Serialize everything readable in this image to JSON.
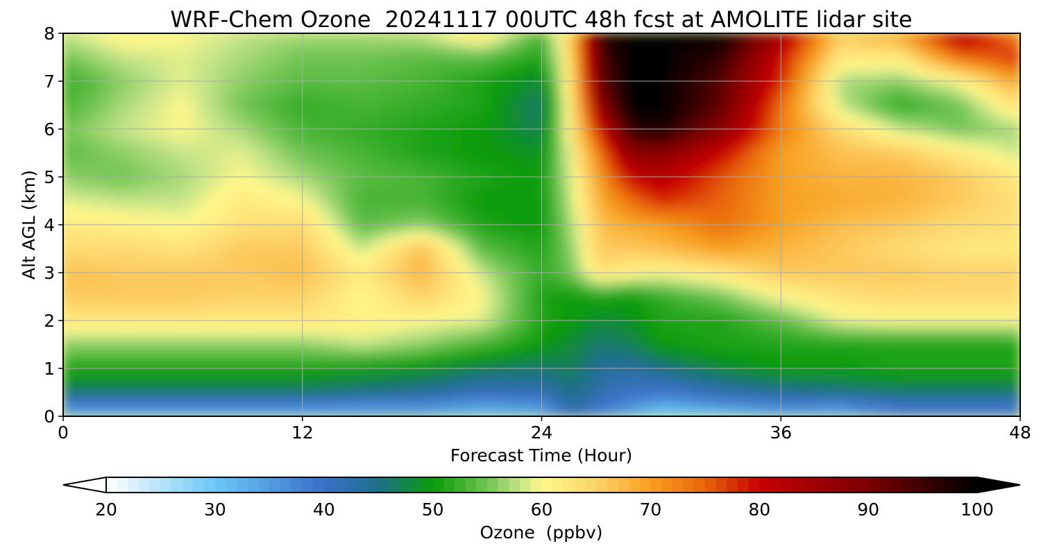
{
  "chart_data": {
    "type": "heatmap",
    "title": "WRF-Chem Ozone  20241117 00UTC 48h fcst at AMOLITE lidar site",
    "xlabel": "Forecast Time (Hour)",
    "ylabel": "Alt AGL (km)",
    "xlim": [
      0,
      48
    ],
    "ylim": [
      0,
      8
    ],
    "xticks": [
      0,
      12,
      24,
      36,
      48
    ],
    "yticks": [
      0,
      1,
      2,
      3,
      4,
      5,
      6,
      7,
      8
    ],
    "grid": true,
    "colorbar": {
      "label": "Ozone  (ppbv)",
      "range": [
        20,
        100
      ],
      "ticks": [
        20,
        30,
        40,
        50,
        60,
        70,
        80,
        90,
        100
      ],
      "extend": "both",
      "stops": [
        {
          "value": 20,
          "color": "#ffffff"
        },
        {
          "value": 30,
          "color": "#6cc8f5"
        },
        {
          "value": 40,
          "color": "#3b6fc7"
        },
        {
          "value": 45,
          "color": "#1f6f8a"
        },
        {
          "value": 50,
          "color": "#0a9b0a"
        },
        {
          "value": 55,
          "color": "#70c452"
        },
        {
          "value": 58,
          "color": "#c5e48a"
        },
        {
          "value": 60,
          "color": "#fff88a"
        },
        {
          "value": 65,
          "color": "#fdd36a"
        },
        {
          "value": 70,
          "color": "#f7a020"
        },
        {
          "value": 75,
          "color": "#e8650a"
        },
        {
          "value": 80,
          "color": "#c80000"
        },
        {
          "value": 90,
          "color": "#7a0000"
        },
        {
          "value": 100,
          "color": "#000000"
        }
      ]
    },
    "x": [
      0,
      3,
      6,
      9,
      12,
      15,
      18,
      21,
      24,
      25.5,
      27,
      28.5,
      30,
      33,
      36,
      39,
      42,
      45,
      48
    ],
    "y": [
      0,
      0.25,
      0.5,
      1,
      1.5,
      2,
      2.5,
      3,
      3.5,
      4,
      4.5,
      5,
      5.5,
      6,
      6.5,
      7,
      7.5,
      8
    ],
    "z": [
      [
        33,
        33,
        33,
        33,
        33,
        33,
        33,
        31,
        33,
        40,
        36,
        32,
        28,
        30,
        33,
        33,
        38,
        38,
        38
      ],
      [
        38,
        38,
        38,
        38,
        38,
        37,
        37,
        35,
        36,
        44,
        40,
        37,
        34,
        36,
        38,
        37,
        40,
        40,
        40
      ],
      [
        46,
        46,
        46,
        46,
        46,
        45,
        44,
        41,
        42,
        45,
        42,
        40,
        39,
        42,
        44,
        45,
        46,
        46,
        46
      ],
      [
        51,
        51,
        51,
        51,
        51,
        50,
        49,
        47,
        46,
        47,
        44,
        43,
        45,
        48,
        50,
        50,
        51,
        51,
        51
      ],
      [
        56,
        56,
        56,
        56,
        56,
        58,
        56,
        53,
        50,
        48,
        46,
        47,
        50,
        51,
        51,
        51,
        51,
        51,
        51
      ],
      [
        62,
        62,
        62,
        62,
        62,
        61,
        60,
        59,
        51,
        50,
        48,
        49,
        51,
        51,
        54,
        59,
        60,
        60,
        60
      ],
      [
        66,
        66,
        66,
        65,
        65,
        60,
        65,
        60,
        51,
        50,
        51,
        50,
        52,
        55,
        60,
        63,
        64,
        64,
        64
      ],
      [
        67,
        66,
        66,
        66,
        67,
        62,
        68,
        58,
        52,
        55,
        63,
        61,
        60,
        62,
        66,
        66,
        66,
        65,
        65
      ],
      [
        64,
        64,
        63,
        66,
        66,
        58,
        67,
        54,
        51,
        56,
        66,
        66,
        67,
        70,
        68,
        66,
        64,
        62,
        62
      ],
      [
        62,
        61,
        60,
        63,
        64,
        54,
        56,
        51,
        50,
        57,
        67,
        69,
        70,
        74,
        70,
        67,
        66,
        64,
        63
      ],
      [
        59,
        58,
        58,
        62,
        60,
        53,
        53,
        50,
        50,
        58,
        69,
        74,
        78,
        75,
        70,
        69,
        68,
        66,
        63
      ],
      [
        56,
        55,
        57,
        60,
        57,
        54,
        53,
        51,
        50,
        59,
        71,
        80,
        82,
        76,
        70,
        68,
        68,
        66,
        62
      ],
      [
        54,
        56,
        58,
        59,
        55,
        53,
        51,
        50,
        49,
        60,
        74,
        87,
        88,
        80,
        70,
        67,
        66,
        62,
        58
      ],
      [
        55,
        58,
        60,
        57,
        53,
        52,
        51,
        50,
        47,
        62,
        80,
        96,
        98,
        88,
        73,
        64,
        58,
        55,
        57
      ],
      [
        53,
        57,
        60,
        55,
        52,
        53,
        52,
        51,
        46,
        62,
        88,
        100,
        100,
        92,
        74,
        58,
        52,
        55,
        63
      ],
      [
        52,
        56,
        59,
        56,
        54,
        54,
        53,
        51,
        48,
        63,
        92,
        100,
        100,
        93,
        78,
        57,
        56,
        60,
        70
      ],
      [
        55,
        58,
        59,
        57,
        55,
        55,
        54,
        54,
        51,
        64,
        94,
        100,
        100,
        96,
        80,
        62,
        62,
        74,
        78
      ],
      [
        58,
        61,
        60,
        58,
        57,
        57,
        58,
        63,
        53,
        65,
        97,
        100,
        100,
        100,
        85,
        66,
        70,
        84,
        72
      ]
    ]
  }
}
